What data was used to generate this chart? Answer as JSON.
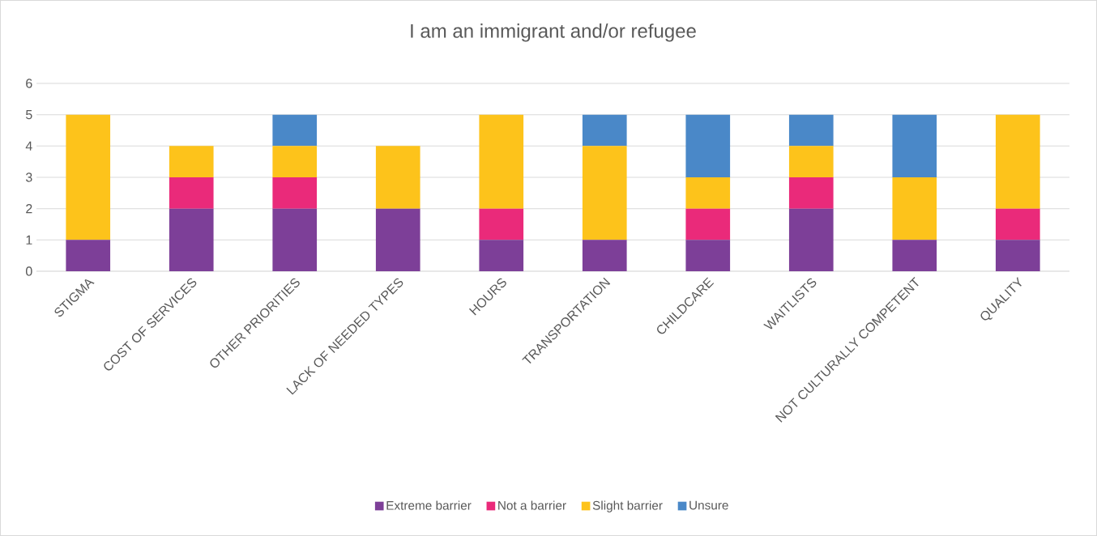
{
  "chart_data": {
    "type": "bar",
    "title": "I am an immigrant and/or refugee",
    "categories": [
      "STIGMA",
      "COST OF SERVICES",
      "OTHER PRIORITIES",
      "LACK OF NEEDED TYPES",
      "HOURS",
      "TRANSPORTATION",
      "CHILDCARE",
      "WAITLISTS",
      "NOT CULTURALLY COMPETENT",
      "QUALITY"
    ],
    "series": [
      {
        "name": "Extreme barrier",
        "color": "#7d3f98",
        "values": [
          1,
          2,
          2,
          2,
          1,
          1,
          1,
          2,
          1,
          1
        ]
      },
      {
        "name": "Not a barrier",
        "color": "#ea2a7a",
        "values": [
          0,
          1,
          1,
          0,
          1,
          0,
          1,
          1,
          0,
          1
        ]
      },
      {
        "name": "Slight barrier",
        "color": "#fdc31b",
        "values": [
          4,
          1,
          1,
          2,
          3,
          3,
          1,
          1,
          2,
          3
        ]
      },
      {
        "name": "Unsure",
        "color": "#4a88c8",
        "values": [
          0,
          0,
          1,
          0,
          0,
          1,
          2,
          1,
          2,
          0
        ]
      }
    ],
    "stacked": true,
    "ylim": [
      0,
      6
    ],
    "yticks": [
      0,
      1,
      2,
      3,
      4,
      5,
      6
    ],
    "grid": "y",
    "legend": "bottom"
  }
}
